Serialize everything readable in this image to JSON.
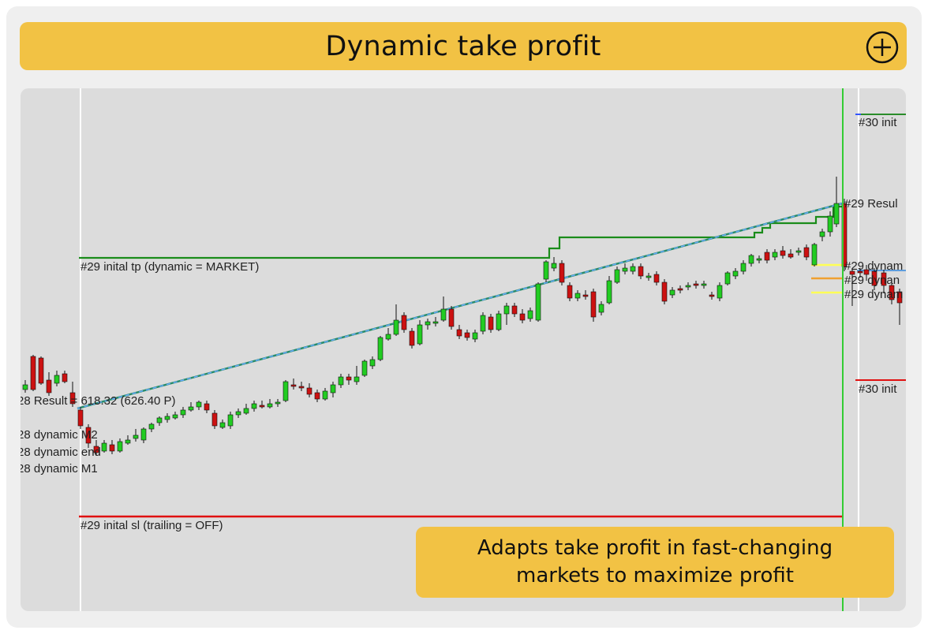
{
  "header": {
    "title": "Dynamic take profit",
    "add_icon": "plus-circle-icon"
  },
  "caption": {
    "text": "Adapts take profit in fast-changing\nmarkets to maximize profit"
  },
  "chart": {
    "labels": {
      "initial_tp": "#29 inital tp (dynamic = MARKET)",
      "initial_sl": "#29 inital sl (trailing = OFF)",
      "result_28": "28 Result = 618.32 (626.40 P)",
      "dynamic_m2": "28 dynamic M2",
      "dynamic_end": "28 dynamic end",
      "dynamic_m1": "28 dynamic M1",
      "result_29": "#29 Resul",
      "init_30_top": "#30 init",
      "init_30_bottom": "#30 init",
      "dynamic_29_a": "#29 dynam",
      "dynamic_29_b": "#29 dynan",
      "dynamic_29_c": "#29 dynam"
    },
    "colors": {
      "background": "#dcdcdc",
      "bull": "#22cc22",
      "bear": "#cc1111",
      "take_profit": "#1a8c1a",
      "stop_loss": "#e01010",
      "trend": "#4499cc",
      "current_bar": "#33cc33",
      "accent": "#f2c244"
    }
  }
}
